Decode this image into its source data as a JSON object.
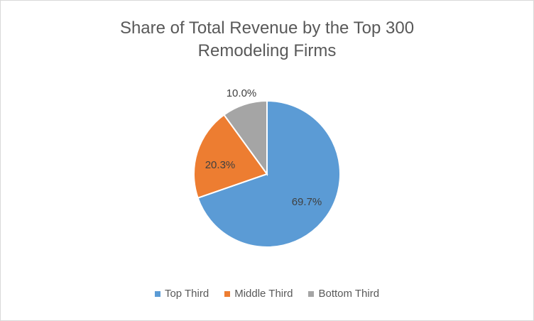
{
  "chart_data": {
    "type": "pie",
    "title": "Share of Total Revenue by the Top 300 Remodeling Firms",
    "title_lines": [
      "Share of Total Revenue by the Top 300",
      "Remodeling Firms"
    ],
    "categories": [
      "Top Third",
      "Middle Third",
      "Bottom Third"
    ],
    "values": [
      69.7,
      20.3,
      10.0
    ],
    "labels": [
      "69.7%",
      "20.3%",
      "10.0%"
    ],
    "colors": [
      "#5B9BD5",
      "#ED7D31",
      "#A5A5A5"
    ],
    "legend_position": "bottom"
  },
  "legend": [
    {
      "label": "Top Third",
      "color": "#5B9BD5"
    },
    {
      "label": "Middle Third",
      "color": "#ED7D31"
    },
    {
      "label": "Bottom Third",
      "color": "#A5A5A5"
    }
  ]
}
